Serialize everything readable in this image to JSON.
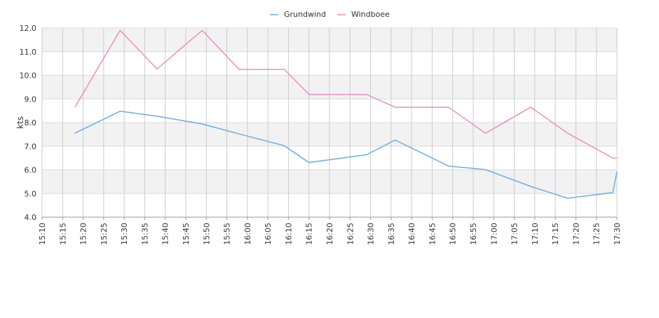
{
  "chart_data": {
    "type": "line",
    "x": [
      "15:18",
      "15:29",
      "15:38",
      "15:49",
      "15:58",
      "16:09",
      "16:15",
      "16:29",
      "16:36",
      "16:49",
      "16:58",
      "17:09",
      "17:18",
      "17:29",
      "17:30"
    ],
    "series": [
      {
        "name": "Grundwind",
        "color": "#6aaee8",
        "values": [
          7.55,
          8.48,
          8.27,
          7.94,
          7.52,
          7.02,
          6.31,
          6.64,
          7.26,
          6.16,
          6.01,
          5.3,
          4.8,
          5.04,
          5.93
        ]
      },
      {
        "name": "Windboee",
        "color": "#ee8fbf",
        "values": [
          8.65,
          11.9,
          10.27,
          11.9,
          10.25,
          10.25,
          9.19,
          9.19,
          8.65,
          8.65,
          7.55,
          8.65,
          7.55,
          6.5,
          6.5
        ]
      }
    ],
    "ylabel": "kts",
    "xlim": [
      "15:10",
      "17:30"
    ],
    "xticks": [
      "15:10",
      "15:15",
      "15:20",
      "15:25",
      "15:30",
      "15:35",
      "15:40",
      "15:45",
      "15:50",
      "15:55",
      "16:00",
      "16:05",
      "16:10",
      "16:15",
      "16:20",
      "16:25",
      "16:30",
      "16:35",
      "16:40",
      "16:45",
      "16:50",
      "16:55",
      "17:00",
      "17:05",
      "17:10",
      "17:15",
      "17:20",
      "17:25",
      "17:30"
    ],
    "ylim": [
      4,
      12
    ],
    "yticks": [
      {
        "value": 4,
        "label": "4.0"
      },
      {
        "value": 5,
        "label": "5.0"
      },
      {
        "value": 6,
        "label": "6.0"
      },
      {
        "value": 7,
        "label": "7.0"
      },
      {
        "value": 8,
        "label": "8.0"
      },
      {
        "value": 9,
        "label": "9.0"
      },
      {
        "value": 10,
        "label": "10.0"
      },
      {
        "value": 11,
        "label": "11.0"
      },
      {
        "value": 12,
        "label": "12.0"
      }
    ],
    "grid": true,
    "legend": "top"
  }
}
